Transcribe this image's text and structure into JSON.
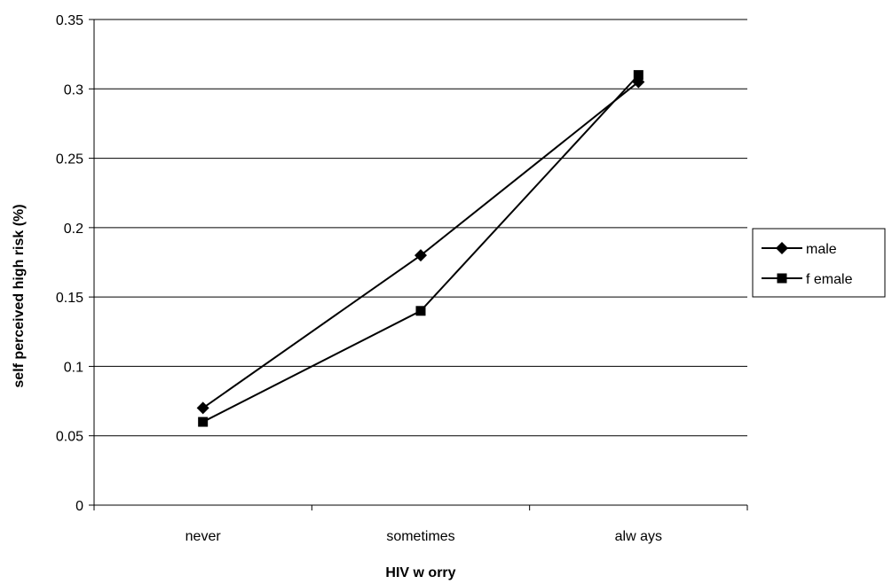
{
  "chart_data": {
    "type": "line",
    "categories": [
      "never",
      "sometimes",
      "always"
    ],
    "category_labels": [
      "never",
      "sometimes",
      "alw ays"
    ],
    "series": [
      {
        "name": "male",
        "values": [
          0.07,
          0.18,
          0.305
        ],
        "marker": "diamond",
        "color": "#000000"
      },
      {
        "name": "female",
        "values": [
          0.06,
          0.14,
          0.31
        ],
        "marker": "square",
        "color": "#000000"
      }
    ],
    "legend_labels": [
      "male",
      "f emale"
    ],
    "xlabel": "HIV w orry",
    "ylabel": "self perceived high risk (%)",
    "ylim": [
      0,
      0.35
    ],
    "yticks": [
      "0",
      "0.05",
      "0.1",
      "0.15",
      "0.2",
      "0.25",
      "0.3",
      "0.35"
    ],
    "ytick_values": [
      0,
      0.05,
      0.1,
      0.15,
      0.2,
      0.25,
      0.3,
      0.35
    ],
    "grid": true,
    "legend_position": "right"
  }
}
